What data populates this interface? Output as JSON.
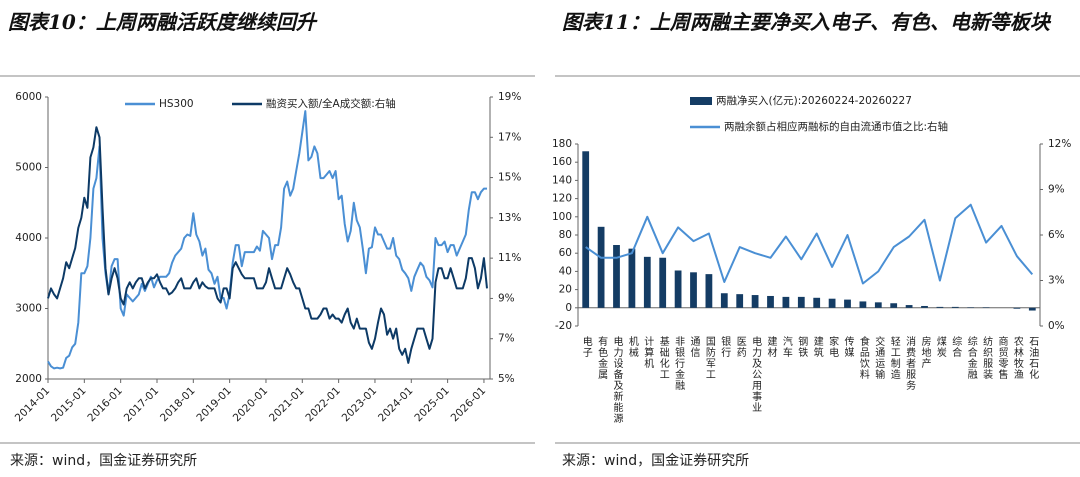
{
  "chart_data": [
    {
      "type": "line",
      "title": "图表10：上周两融活跃度继续回升",
      "source": "来源：wind，国金证券研究所",
      "xlim": [
        "2014-01",
        "2026-03"
      ],
      "xticks": [
        "2014-01",
        "2015-01",
        "2016-01",
        "2017-01",
        "2018-01",
        "2019-01",
        "2020-01",
        "2021-01",
        "2022-01",
        "2023-01",
        "2024-01",
        "2025-01",
        "2026-01"
      ],
      "ylim": [
        2000,
        6000
      ],
      "yticks": [
        2000,
        3000,
        4000,
        5000,
        6000
      ],
      "y2lim": [
        5,
        19
      ],
      "y2ticks": [
        {
          "value": 5,
          "label": "5%"
        },
        {
          "value": 7,
          "label": "7%"
        },
        {
          "value": 9,
          "label": "9%"
        },
        {
          "value": 11,
          "label": "11%"
        },
        {
          "value": 13,
          "label": "13%"
        },
        {
          "value": 15,
          "label": "15%"
        },
        {
          "value": 17,
          "label": "17%"
        },
        {
          "value": 19,
          "label": "19%"
        }
      ],
      "x": [
        "2014-01",
        "2014-02",
        "2014-03",
        "2014-04",
        "2014-05",
        "2014-06",
        "2014-07",
        "2014-08",
        "2014-09",
        "2014-10",
        "2014-11",
        "2014-12",
        "2015-01",
        "2015-02",
        "2015-03",
        "2015-04",
        "2015-05",
        "2015-06",
        "2015-07",
        "2015-08",
        "2015-09",
        "2015-10",
        "2015-11",
        "2015-12",
        "2016-01",
        "2016-02",
        "2016-03",
        "2016-04",
        "2016-05",
        "2016-06",
        "2016-07",
        "2016-08",
        "2016-09",
        "2016-10",
        "2016-11",
        "2016-12",
        "2017-01",
        "2017-02",
        "2017-03",
        "2017-04",
        "2017-05",
        "2017-06",
        "2017-07",
        "2017-08",
        "2017-09",
        "2017-10",
        "2017-11",
        "2017-12",
        "2018-01",
        "2018-02",
        "2018-03",
        "2018-04",
        "2018-05",
        "2018-06",
        "2018-07",
        "2018-08",
        "2018-09",
        "2018-10",
        "2018-11",
        "2018-12",
        "2019-01",
        "2019-02",
        "2019-03",
        "2019-04",
        "2019-05",
        "2019-06",
        "2019-07",
        "2019-08",
        "2019-09",
        "2019-10",
        "2019-11",
        "2019-12",
        "2020-01",
        "2020-02",
        "2020-03",
        "2020-04",
        "2020-05",
        "2020-06",
        "2020-07",
        "2020-08",
        "2020-09",
        "2020-10",
        "2020-11",
        "2020-12",
        "2021-01",
        "2021-02",
        "2021-03",
        "2021-04",
        "2021-05",
        "2021-06",
        "2021-07",
        "2021-08",
        "2021-09",
        "2021-10",
        "2021-11",
        "2021-12",
        "2022-01",
        "2022-02",
        "2022-03",
        "2022-04",
        "2022-05",
        "2022-06",
        "2022-07",
        "2022-08",
        "2022-09",
        "2022-10",
        "2022-11",
        "2022-12",
        "2023-01",
        "2023-02",
        "2023-03",
        "2023-04",
        "2023-05",
        "2023-06",
        "2023-07",
        "2023-08",
        "2023-09",
        "2023-10",
        "2023-11",
        "2023-12",
        "2024-01",
        "2024-02",
        "2024-03",
        "2024-04",
        "2024-05",
        "2024-06",
        "2024-07",
        "2024-08",
        "2024-09",
        "2024-10",
        "2024-11",
        "2024-12",
        "2025-01",
        "2025-02",
        "2025-03",
        "2025-04",
        "2025-05",
        "2025-06",
        "2025-07",
        "2025-08",
        "2025-09",
        "2025-10",
        "2025-11",
        "2025-12",
        "2026-01",
        "2026-02"
      ],
      "series": [
        {
          "name": "HS300",
          "color": "#4a8fd4",
          "values": [
            2250,
            2180,
            2150,
            2160,
            2150,
            2160,
            2300,
            2330,
            2450,
            2500,
            2800,
            3500,
            3500,
            3600,
            4000,
            4700,
            4850,
            5300,
            4000,
            3500,
            3200,
            3600,
            3700,
            3700,
            3000,
            2900,
            3200,
            3150,
            3100,
            3150,
            3200,
            3350,
            3250,
            3350,
            3450,
            3300,
            3400,
            3450,
            3450,
            3450,
            3500,
            3650,
            3750,
            3800,
            3850,
            4000,
            4050,
            4030,
            4350,
            4050,
            3950,
            3750,
            3850,
            3550,
            3500,
            3350,
            3450,
            3150,
            3150,
            3000,
            3200,
            3650,
            3900,
            3900,
            3600,
            3800,
            3800,
            3800,
            3800,
            3880,
            3820,
            4100,
            4050,
            4000,
            3700,
            3900,
            3900,
            4150,
            4700,
            4800,
            4600,
            4700,
            4950,
            5200,
            5500,
            5800,
            5100,
            5150,
            5300,
            5200,
            4850,
            4850,
            4900,
            4950,
            4850,
            4950,
            4550,
            4600,
            4200,
            3950,
            4100,
            4500,
            4250,
            4150,
            3850,
            3500,
            3850,
            3870,
            4150,
            4050,
            4050,
            3950,
            3850,
            3850,
            4000,
            3750,
            3700,
            3550,
            3500,
            3430,
            3250,
            3450,
            3550,
            3650,
            3600,
            3450,
            3400,
            3300,
            4000,
            3900,
            3900,
            3950,
            3800,
            3900,
            3900,
            3750,
            3850,
            3950,
            4050,
            4400,
            4650,
            4650,
            4550,
            4650,
            4700,
            4700
          ]
        },
        {
          "name": "融资买入额/全A成交额:右轴",
          "color": "#0d3a66",
          "axis": "y2",
          "values": [
            9.0,
            9.5,
            9.2,
            9.0,
            9.5,
            10.0,
            10.8,
            10.5,
            11.0,
            11.5,
            12.5,
            13.0,
            14.0,
            13.5,
            16.0,
            16.5,
            17.5,
            17.0,
            13.5,
            10.5,
            9.2,
            10.0,
            10.5,
            10.0,
            9.0,
            8.7,
            9.5,
            9.8,
            9.5,
            9.8,
            10.0,
            10.0,
            9.5,
            9.8,
            10.0,
            10.0,
            10.2,
            9.8,
            9.5,
            9.5,
            9.2,
            9.3,
            9.5,
            9.8,
            10.0,
            9.5,
            9.5,
            9.5,
            9.8,
            10.0,
            9.5,
            9.8,
            9.6,
            9.5,
            9.5,
            9.5,
            9.0,
            8.8,
            9.5,
            9.5,
            9.0,
            10.5,
            10.8,
            10.5,
            10.2,
            10.0,
            10.0,
            10.0,
            10.0,
            9.5,
            9.5,
            9.5,
            9.8,
            10.5,
            10.0,
            9.5,
            9.5,
            9.5,
            10.0,
            10.5,
            10.2,
            9.8,
            9.5,
            9.5,
            9.0,
            8.5,
            8.5,
            8.0,
            8.0,
            8.0,
            8.2,
            8.5,
            8.5,
            8.0,
            8.2,
            8.0,
            8.0,
            7.8,
            8.2,
            8.5,
            7.8,
            7.5,
            8.0,
            7.5,
            7.5,
            7.5,
            6.8,
            6.5,
            7.0,
            7.8,
            8.5,
            8.2,
            7.2,
            7.5,
            7.0,
            7.5,
            6.5,
            6.2,
            6.5,
            5.8,
            6.5,
            7.0,
            7.5,
            7.5,
            7.5,
            7.0,
            6.5,
            7.0,
            9.8,
            10.5,
            10.5,
            10.0,
            10.0,
            10.5,
            10.0,
            9.5,
            9.5,
            9.5,
            10.0,
            11.0,
            11.0,
            10.5,
            9.5,
            10.0,
            11.0,
            9.5
          ]
        }
      ]
    },
    {
      "type": "bar",
      "title": "图表11：上周两融主要净买入电子、有色、电新等板块",
      "source": "来源：wind，国金证券研究所",
      "categories": [
        "电子",
        "有色金属",
        "电力设备及新能源",
        "机械",
        "计算机",
        "基础化工",
        "非银行金融",
        "通信",
        "国防军工",
        "银行",
        "医药",
        "电力及公用事业",
        "建材",
        "汽车",
        "钢铁",
        "建筑",
        "家电",
        "传媒",
        "食品饮料",
        "交通运输",
        "轻工制造",
        "消费者服务",
        "房地产",
        "煤炭",
        "综合",
        "综合金融",
        "纺织服装",
        "商贸零售",
        "农林牧渔",
        "石油石化"
      ],
      "ylim": [
        -20,
        180
      ],
      "yticks": [
        -20,
        0,
        20,
        40,
        60,
        80,
        100,
        120,
        140,
        160,
        180
      ],
      "y2lim": [
        0,
        12
      ],
      "y2ticks": [
        {
          "value": 0,
          "label": "0%"
        },
        {
          "value": 3,
          "label": "3%"
        },
        {
          "value": 6,
          "label": "6%"
        },
        {
          "value": 9,
          "label": "9%"
        },
        {
          "value": 12,
          "label": "12%"
        }
      ],
      "series": [
        {
          "name": "两融净买入(亿元):20260224-20260227",
          "color": "#143c64",
          "values": [
            172,
            89,
            69,
            65,
            56,
            55,
            41,
            39,
            37,
            16,
            15,
            14,
            13,
            12,
            12,
            11,
            10,
            9,
            7,
            6,
            5,
            3,
            2,
            1,
            1,
            0.5,
            0.5,
            0,
            -1,
            -3
          ]
        },
        {
          "name": "两融余额占相应两融标的自由流通市值之比:右轴",
          "type": "line",
          "color": "#4a8fd4",
          "axis": "y2",
          "values": [
            5.2,
            4.5,
            4.5,
            4.8,
            7.2,
            4.8,
            6.5,
            5.6,
            6.1,
            2.9,
            5.2,
            4.8,
            4.5,
            5.9,
            4.4,
            6.1,
            3.9,
            6.0,
            2.8,
            3.6,
            5.2,
            5.9,
            7.0,
            3.0,
            7.1,
            8.0,
            5.5,
            6.6,
            4.6,
            3.4
          ]
        }
      ]
    }
  ]
}
